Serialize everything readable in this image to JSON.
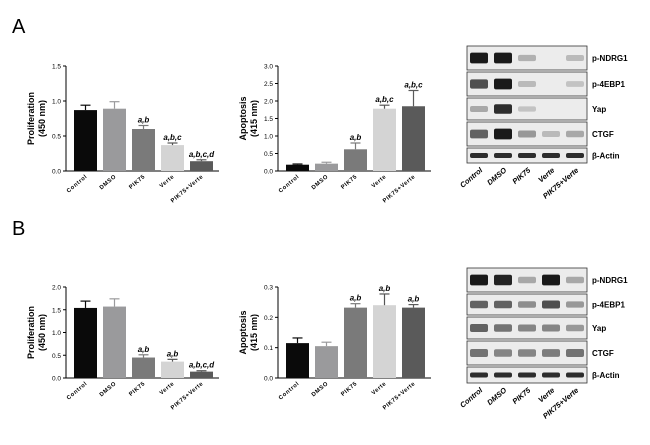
{
  "panels": [
    {
      "letter": "A"
    },
    {
      "letter": "B"
    }
  ],
  "colors": {
    "control": "#0a0a0a",
    "dmso": "#9a9a9c",
    "pik75": "#7a7a7a",
    "verte": "#d4d4d4",
    "pik75_verte": "#5a5a5a",
    "blot_bg": "#ececec",
    "blot_band": "#1a1a1a"
  },
  "chart_data": [
    {
      "panel": "A",
      "type": "bar",
      "ylabel": "Proliferation",
      "yunit": "(450 nm)",
      "categories": [
        "Control",
        "DMSO",
        "PIK75",
        "Verte",
        "PIK75+Verte"
      ],
      "values": [
        0.87,
        0.89,
        0.6,
        0.37,
        0.14
      ],
      "errors": [
        0.07,
        0.1,
        0.05,
        0.03,
        0.02
      ],
      "annotations": [
        "",
        "",
        "a,b",
        "a,b,c",
        "a,b,c,d"
      ],
      "ylim": [
        0,
        1.5
      ],
      "yticks": [
        "0.0",
        "0.5",
        "1.0",
        "1.5"
      ]
    },
    {
      "panel": "A",
      "type": "bar",
      "ylabel": "Apoptosis",
      "yunit": "(415 nm)",
      "categories": [
        "Control",
        "DMSO",
        "PIK75",
        "Verte",
        "PIK75+Verte"
      ],
      "values": [
        0.18,
        0.21,
        0.62,
        1.78,
        1.85
      ],
      "errors": [
        0.02,
        0.04,
        0.18,
        0.1,
        0.45
      ],
      "annotations": [
        "",
        "",
        "a,b",
        "a,b,c",
        "a,b,c"
      ],
      "ylim": [
        0,
        3.0
      ],
      "yticks": [
        "0.0",
        "0.5",
        "1.0",
        "1.5",
        "2.0",
        "2.5",
        "3.0"
      ]
    },
    {
      "panel": "B",
      "type": "bar",
      "ylabel": "Proliferation",
      "yunit": "(450 nm)",
      "categories": [
        "Control",
        "DMSO",
        "PIK75",
        "Verte",
        "PIK75+Verte"
      ],
      "values": [
        1.54,
        1.57,
        0.45,
        0.36,
        0.14
      ],
      "errors": [
        0.15,
        0.17,
        0.06,
        0.05,
        0.02
      ],
      "annotations": [
        "",
        "",
        "a,b",
        "a,b",
        "a,b,c,d"
      ],
      "ylim": [
        0,
        2.0
      ],
      "yticks": [
        "0.0",
        "0.5",
        "1.0",
        "1.5",
        "2.0"
      ]
    },
    {
      "panel": "B",
      "type": "bar",
      "ylabel": "Apoptosis",
      "yunit": "(415 nm)",
      "categories": [
        "Control",
        "DMSO",
        "PIK75",
        "Verte",
        "PIK75+Verte"
      ],
      "values": [
        0.115,
        0.105,
        0.232,
        0.24,
        0.232
      ],
      "errors": [
        0.017,
        0.013,
        0.013,
        0.037,
        0.01
      ],
      "annotations": [
        "",
        "",
        "a,b",
        "a,b",
        "a,b"
      ],
      "ylim": [
        0,
        0.3
      ],
      "yticks": [
        "0.0",
        "0.1",
        "0.2",
        "0.3"
      ]
    }
  ],
  "blots": [
    {
      "panel": "A",
      "proteins": [
        "p-NDRG1",
        "p-4EBP1",
        "Yap",
        "CTGF",
        "β-Actin"
      ],
      "lanes": [
        "Control",
        "DMSO",
        "PIK75",
        "Verte",
        "PIK75+Verte"
      ],
      "intensity": [
        [
          1.0,
          1.0,
          0.15,
          0.0,
          0.1
        ],
        [
          0.7,
          1.0,
          0.1,
          0.0,
          0.05
        ],
        [
          0.2,
          0.9,
          0.05,
          0.0,
          0.0
        ],
        [
          0.6,
          1.0,
          0.3,
          0.1,
          0.2
        ],
        [
          0.9,
          0.9,
          0.9,
          0.9,
          0.9
        ]
      ]
    },
    {
      "panel": "B",
      "proteins": [
        "p-NDRG1",
        "p-4EBP1",
        "Yap",
        "CTGF",
        "β-Actin"
      ],
      "lanes": [
        "Control",
        "DMSO",
        "PIK75",
        "Verte",
        "PIK75+Verte"
      ],
      "intensity": [
        [
          1.0,
          0.95,
          0.2,
          1.0,
          0.2
        ],
        [
          0.6,
          0.6,
          0.35,
          0.7,
          0.3
        ],
        [
          0.6,
          0.5,
          0.4,
          0.4,
          0.3
        ],
        [
          0.5,
          0.4,
          0.4,
          0.45,
          0.5
        ],
        [
          0.9,
          0.9,
          0.9,
          0.9,
          0.9
        ]
      ]
    }
  ]
}
